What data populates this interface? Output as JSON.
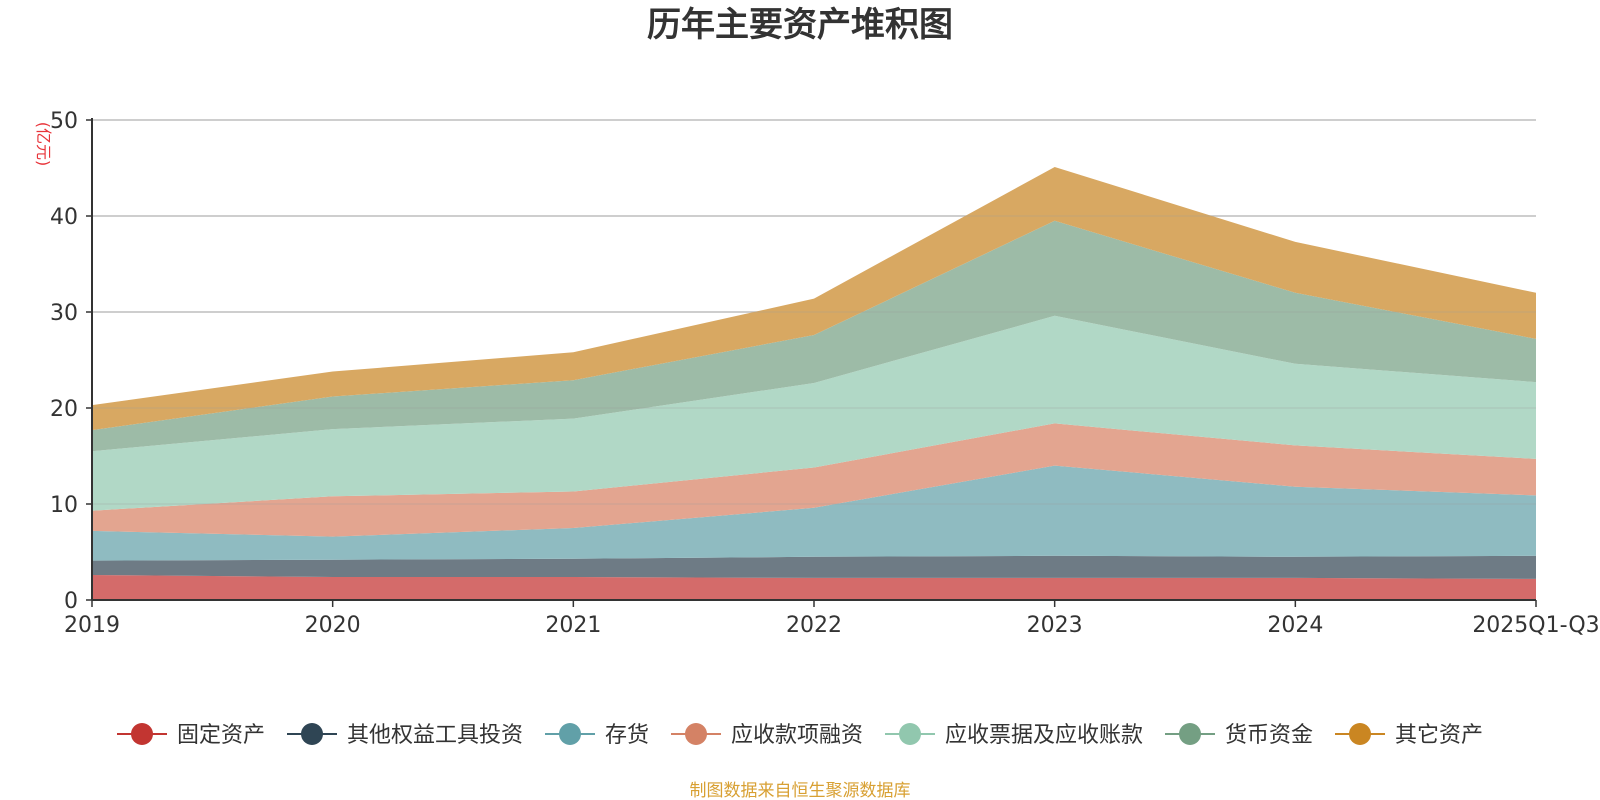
{
  "chart_data": {
    "type": "area",
    "stacked": true,
    "title": "历年主要资产堆积图",
    "ylabel": "(亿元)",
    "xlabel": "",
    "ylim": [
      0,
      50
    ],
    "yticks": [
      0,
      10,
      20,
      30,
      40,
      50
    ],
    "grid": true,
    "legend_position": "bottom",
    "categories": [
      "2019",
      "2020",
      "2021",
      "2022",
      "2023",
      "2024",
      "2025Q1-Q3"
    ],
    "series": [
      {
        "name": "固定资产",
        "color": "#c23531",
        "fill": "#d46b6a",
        "values": [
          2.6,
          2.4,
          2.4,
          2.3,
          2.3,
          2.3,
          2.2
        ]
      },
      {
        "name": "其他权益工具投资",
        "color": "#2f4554",
        "fill": "#6e7b85",
        "values": [
          1.5,
          1.8,
          1.9,
          2.2,
          2.3,
          2.2,
          2.4
        ]
      },
      {
        "name": "存货",
        "color": "#61a0a8",
        "fill": "#8fbbc1",
        "values": [
          3.1,
          2.4,
          3.2,
          5.1,
          9.4,
          7.3,
          6.3
        ]
      },
      {
        "name": "应收款项融资",
        "color": "#d48265",
        "fill": "#e3a590",
        "values": [
          2.1,
          4.2,
          3.8,
          4.2,
          4.4,
          4.3,
          3.8
        ]
      },
      {
        "name": "应收票据及应收账款",
        "color": "#91c7ae",
        "fill": "#b1d8c6",
        "values": [
          6.2,
          7.0,
          7.6,
          8.8,
          11.2,
          8.5,
          8.0
        ]
      },
      {
        "name": "货币资金",
        "color": "#749f83",
        "fill": "#9dbba7",
        "values": [
          2.2,
          3.4,
          4.0,
          5.0,
          9.9,
          7.4,
          4.5
        ]
      },
      {
        "name": "其它资产",
        "color": "#ca8622",
        "fill": "#d8a862",
        "values": [
          2.6,
          2.6,
          2.9,
          3.8,
          5.6,
          5.3,
          4.8
        ]
      }
    ],
    "footer": "制图数据来自恒生聚源数据库"
  }
}
